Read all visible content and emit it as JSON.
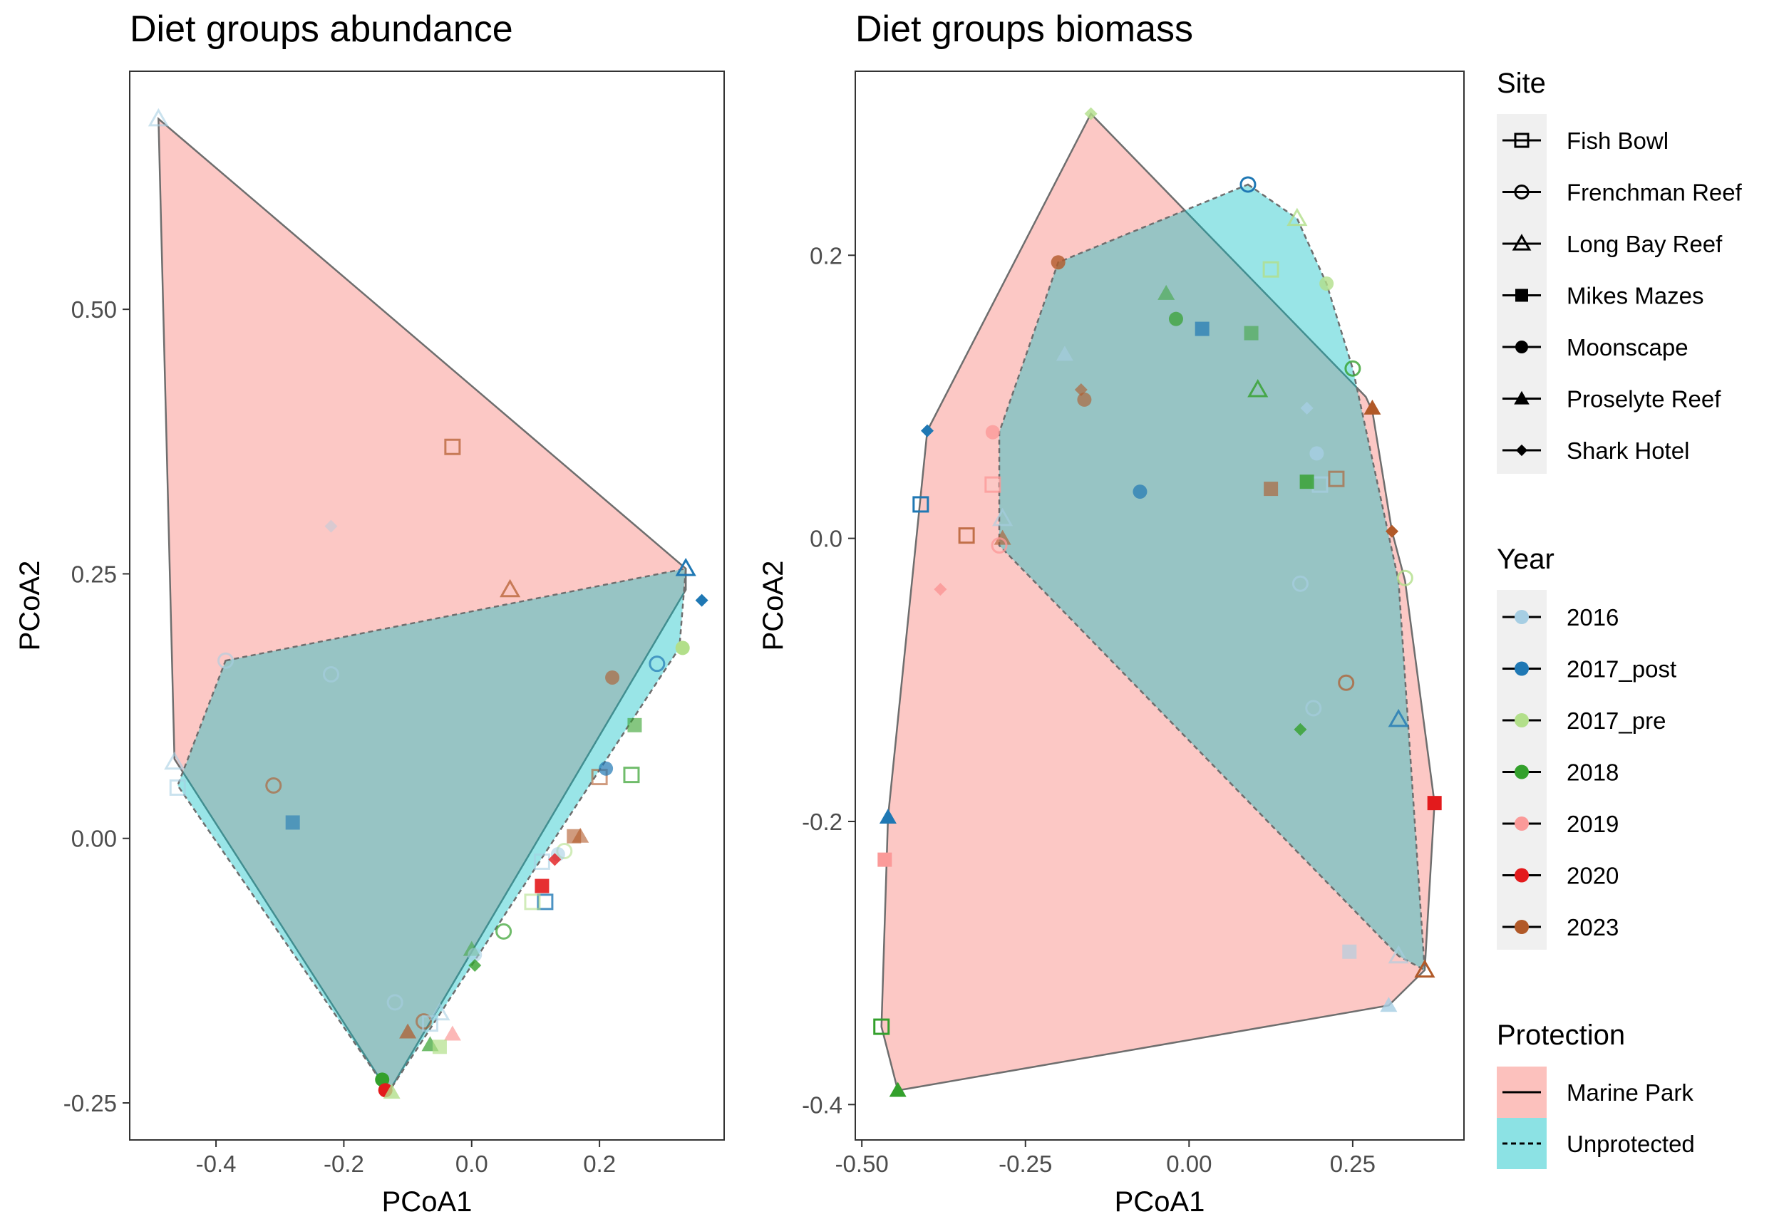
{
  "colors": {
    "marine_park_fill": "#F8766D",
    "unprotected_fill": "#00BFC4",
    "hull_stroke": "#6e6e6e",
    "years": {
      "2016": "#A6CEE3",
      "2017_post": "#1F78B4",
      "2017_pre": "#B2DF8A",
      "2018": "#33A02C",
      "2019": "#FB9A99",
      "2020": "#E31A1C",
      "2023": "#B15928"
    }
  },
  "legend": {
    "site_title": "Site",
    "sites": [
      {
        "label": "Fish Bowl",
        "shape": "square-open"
      },
      {
        "label": "Frenchman Reef",
        "shape": "circle-open"
      },
      {
        "label": "Long Bay Reef",
        "shape": "triangle-open"
      },
      {
        "label": "Mikes Mazes",
        "shape": "square-filled"
      },
      {
        "label": "Moonscape",
        "shape": "circle-filled"
      },
      {
        "label": "Proselyte Reef",
        "shape": "triangle-filled"
      },
      {
        "label": "Shark Hotel",
        "shape": "diamond-filled"
      }
    ],
    "year_title": "Year",
    "years": [
      "2016",
      "2017_post",
      "2017_pre",
      "2018",
      "2019",
      "2020",
      "2023"
    ],
    "protection_title": "Protection",
    "protection": [
      {
        "label": "Marine Park",
        "line": "solid"
      },
      {
        "label": "Unprotected",
        "line": "dashed"
      }
    ]
  },
  "chart_data": [
    {
      "type": "scatter",
      "title": "Diet groups abundance",
      "xlabel": "PCoA1",
      "ylabel": "PCoA2",
      "xlim": [
        -0.535,
        0.395
      ],
      "ylim": [
        -0.285,
        0.725
      ],
      "xticks": [
        -0.4,
        -0.2,
        0.0,
        0.2
      ],
      "xtick_labels": [
        "-0.4",
        "-0.2",
        "0.0",
        "0.2"
      ],
      "yticks": [
        -0.25,
        0.0,
        0.25,
        0.5
      ],
      "ytick_labels": [
        "-0.25",
        "0.00",
        "0.25",
        "0.50"
      ],
      "hulls": [
        {
          "group": "Marine Park",
          "points": [
            [
              -0.49,
              0.68
            ],
            [
              0.335,
              0.255
            ],
            [
              0.335,
              0.235
            ],
            [
              -0.13,
              -0.24
            ],
            [
              -0.465,
              0.075
            ]
          ]
        },
        {
          "group": "Unprotected",
          "points": [
            [
              -0.385,
              0.168
            ],
            [
              0.335,
              0.255
            ],
            [
              0.325,
              0.18
            ],
            [
              -0.13,
              -0.24
            ],
            [
              -0.46,
              0.05
            ]
          ]
        }
      ],
      "points": [
        {
          "x": -0.49,
          "y": 0.68,
          "site": "Long Bay Reef",
          "year": "2016",
          "alpha": 0.6
        },
        {
          "x": -0.03,
          "y": 0.37,
          "site": "Fish Bowl",
          "year": "2023",
          "alpha": 0.7
        },
        {
          "x": -0.22,
          "y": 0.295,
          "site": "Shark Hotel",
          "year": "2016",
          "alpha": 0.4
        },
        {
          "x": 0.06,
          "y": 0.235,
          "site": "Long Bay Reef",
          "year": "2023",
          "alpha": 0.7
        },
        {
          "x": 0.335,
          "y": 0.255,
          "site": "Long Bay Reef",
          "year": "2017_post",
          "alpha": 1.0
        },
        {
          "x": 0.36,
          "y": 0.225,
          "site": "Shark Hotel",
          "year": "2017_post",
          "alpha": 1.0
        },
        {
          "x": -0.385,
          "y": 0.168,
          "site": "Frenchman Reef",
          "year": "2016",
          "alpha": 0.6
        },
        {
          "x": -0.22,
          "y": 0.155,
          "site": "Frenchman Reef",
          "year": "2016",
          "alpha": 0.6
        },
        {
          "x": 0.29,
          "y": 0.165,
          "site": "Frenchman Reef",
          "year": "2017_post",
          "alpha": 0.7
        },
        {
          "x": 0.33,
          "y": 0.18,
          "site": "Moonscape",
          "year": "2017_pre",
          "alpha": 1.0
        },
        {
          "x": 0.22,
          "y": 0.152,
          "site": "Moonscape",
          "year": "2023",
          "alpha": 0.6
        },
        {
          "x": 0.255,
          "y": 0.107,
          "site": "Mikes Mazes",
          "year": "2018",
          "alpha": 0.6
        },
        {
          "x": -0.465,
          "y": 0.072,
          "site": "Long Bay Reef",
          "year": "2016",
          "alpha": 0.6
        },
        {
          "x": -0.46,
          "y": 0.048,
          "site": "Fish Bowl",
          "year": "2016",
          "alpha": 0.6
        },
        {
          "x": -0.31,
          "y": 0.05,
          "site": "Frenchman Reef",
          "year": "2023",
          "alpha": 0.6
        },
        {
          "x": -0.28,
          "y": 0.015,
          "site": "Mikes Mazes",
          "year": "2017_post",
          "alpha": 0.6
        },
        {
          "x": 0.2,
          "y": 0.058,
          "site": "Fish Bowl",
          "year": "2023",
          "alpha": 0.6
        },
        {
          "x": 0.25,
          "y": 0.06,
          "site": "Fish Bowl",
          "year": "2018",
          "alpha": 0.7
        },
        {
          "x": 0.21,
          "y": 0.066,
          "site": "Moonscape",
          "year": "2017_post",
          "alpha": 0.7
        },
        {
          "x": 0.17,
          "y": 0.002,
          "site": "Proselyte Reef",
          "year": "2023",
          "alpha": 0.6
        },
        {
          "x": 0.16,
          "y": 0.002,
          "site": "Mikes Mazes",
          "year": "2023",
          "alpha": 0.6
        },
        {
          "x": 0.145,
          "y": -0.012,
          "site": "Frenchman Reef",
          "year": "2017_pre",
          "alpha": 0.6
        },
        {
          "x": 0.135,
          "y": -0.015,
          "site": "Moonscape",
          "year": "2016",
          "alpha": 0.6
        },
        {
          "x": 0.11,
          "y": -0.022,
          "site": "Fish Bowl",
          "year": "2016",
          "alpha": 0.6
        },
        {
          "x": 0.13,
          "y": -0.02,
          "site": "Shark Hotel",
          "year": "2020",
          "alpha": 0.8
        },
        {
          "x": 0.11,
          "y": -0.045,
          "site": "Mikes Mazes",
          "year": "2020",
          "alpha": 0.9
        },
        {
          "x": 0.115,
          "y": -0.06,
          "site": "Fish Bowl",
          "year": "2017_post",
          "alpha": 0.8
        },
        {
          "x": 0.095,
          "y": -0.06,
          "site": "Fish Bowl",
          "year": "2017_pre",
          "alpha": 0.6
        },
        {
          "x": 0.05,
          "y": -0.088,
          "site": "Frenchman Reef",
          "year": "2018",
          "alpha": 0.7
        },
        {
          "x": 0.0,
          "y": -0.105,
          "site": "Proselyte Reef",
          "year": "2018",
          "alpha": 0.5
        },
        {
          "x": 0.005,
          "y": -0.11,
          "site": "Moonscape",
          "year": "2016",
          "alpha": 0.6
        },
        {
          "x": 0.005,
          "y": -0.12,
          "site": "Shark Hotel",
          "year": "2018",
          "alpha": 0.8
        },
        {
          "x": -0.12,
          "y": -0.155,
          "site": "Frenchman Reef",
          "year": "2016",
          "alpha": 0.6
        },
        {
          "x": -0.075,
          "y": -0.173,
          "site": "Frenchman Reef",
          "year": "2023",
          "alpha": 0.6
        },
        {
          "x": -0.065,
          "y": -0.175,
          "site": "Fish Bowl",
          "year": "2016",
          "alpha": 0.6
        },
        {
          "x": -0.05,
          "y": -0.165,
          "site": "Long Bay Reef",
          "year": "2016",
          "alpha": 0.6
        },
        {
          "x": -0.1,
          "y": -0.183,
          "site": "Proselyte Reef",
          "year": "2023",
          "alpha": 0.7
        },
        {
          "x": -0.03,
          "y": -0.185,
          "site": "Proselyte Reef",
          "year": "2019",
          "alpha": 0.7
        },
        {
          "x": -0.065,
          "y": -0.195,
          "site": "Proselyte Reef",
          "year": "2018",
          "alpha": 0.7
        },
        {
          "x": -0.05,
          "y": -0.197,
          "site": "Mikes Mazes",
          "year": "2017_pre",
          "alpha": 0.7
        },
        {
          "x": -0.14,
          "y": -0.228,
          "site": "Moonscape",
          "year": "2018",
          "alpha": 1.0
        },
        {
          "x": -0.135,
          "y": -0.238,
          "site": "Moonscape",
          "year": "2020",
          "alpha": 1.0
        },
        {
          "x": -0.125,
          "y": -0.24,
          "site": "Proselyte Reef",
          "year": "2017_pre",
          "alpha": 0.8
        }
      ]
    },
    {
      "type": "scatter",
      "title": "Diet groups biomass",
      "xlabel": "PCoA1",
      "ylabel": "PCoA2",
      "xlim": [
        -0.51,
        0.42
      ],
      "ylim": [
        -0.425,
        0.33
      ],
      "xticks": [
        -0.5,
        -0.25,
        0.0,
        0.25
      ],
      "xtick_labels": [
        "-0.50",
        "-0.25",
        "0.00",
        "0.25"
      ],
      "yticks": [
        -0.4,
        -0.2,
        0.0,
        0.2
      ],
      "ytick_labels": [
        "-0.4",
        "-0.2",
        "0.0",
        "0.2"
      ],
      "hulls": [
        {
          "group": "Marine Park",
          "points": [
            [
              -0.15,
              0.3
            ],
            [
              0.27,
              0.1
            ],
            [
              0.28,
              0.09
            ],
            [
              0.31,
              0.005
            ],
            [
              0.33,
              -0.03
            ],
            [
              0.375,
              -0.187
            ],
            [
              0.36,
              -0.305
            ],
            [
              0.305,
              -0.33
            ],
            [
              -0.445,
              -0.39
            ],
            [
              -0.47,
              -0.345
            ],
            [
              -0.46,
              -0.197
            ],
            [
              -0.4,
              0.076
            ]
          ]
        },
        {
          "group": "Unprotected",
          "points": [
            [
              0.09,
              0.25
            ],
            [
              0.165,
              0.226
            ],
            [
              0.21,
              0.18
            ],
            [
              0.25,
              0.12
            ],
            [
              0.32,
              -0.03
            ],
            [
              0.36,
              -0.305
            ],
            [
              0.32,
              -0.295
            ],
            [
              -0.29,
              -0.005
            ],
            [
              -0.29,
              0.075
            ],
            [
              -0.2,
              0.195
            ]
          ]
        }
      ],
      "points": [
        {
          "x": -0.15,
          "y": 0.3,
          "site": "Shark Hotel",
          "year": "2017_pre",
          "alpha": 0.8
        },
        {
          "x": 0.09,
          "y": 0.25,
          "site": "Frenchman Reef",
          "year": "2017_post",
          "alpha": 1.0
        },
        {
          "x": 0.165,
          "y": 0.226,
          "site": "Long Bay Reef",
          "year": "2017_pre",
          "alpha": 0.8
        },
        {
          "x": 0.125,
          "y": 0.19,
          "site": "Fish Bowl",
          "year": "2017_pre",
          "alpha": 0.8
        },
        {
          "x": -0.2,
          "y": 0.195,
          "site": "Moonscape",
          "year": "2023",
          "alpha": 0.8
        },
        {
          "x": 0.21,
          "y": 0.18,
          "site": "Moonscape",
          "year": "2017_pre",
          "alpha": 0.8
        },
        {
          "x": -0.035,
          "y": 0.173,
          "site": "Proselyte Reef",
          "year": "2018",
          "alpha": 0.5
        },
        {
          "x": -0.02,
          "y": 0.155,
          "site": "Moonscape",
          "year": "2018",
          "alpha": 0.7
        },
        {
          "x": 0.02,
          "y": 0.148,
          "site": "Mikes Mazes",
          "year": "2017_post",
          "alpha": 0.7
        },
        {
          "x": 0.095,
          "y": 0.145,
          "site": "Mikes Mazes",
          "year": "2018",
          "alpha": 0.5
        },
        {
          "x": -0.19,
          "y": 0.13,
          "site": "Proselyte Reef",
          "year": "2016",
          "alpha": 0.6
        },
        {
          "x": 0.25,
          "y": 0.12,
          "site": "Frenchman Reef",
          "year": "2018",
          "alpha": 0.8
        },
        {
          "x": -0.165,
          "y": 0.105,
          "site": "Shark Hotel",
          "year": "2023",
          "alpha": 0.6
        },
        {
          "x": -0.16,
          "y": 0.098,
          "site": "Moonscape",
          "year": "2023",
          "alpha": 0.6
        },
        {
          "x": 0.105,
          "y": 0.105,
          "site": "Long Bay Reef",
          "year": "2018",
          "alpha": 0.8
        },
        {
          "x": 0.28,
          "y": 0.092,
          "site": "Proselyte Reef",
          "year": "2023",
          "alpha": 1.0
        },
        {
          "x": 0.18,
          "y": 0.092,
          "site": "Shark Hotel",
          "year": "2016",
          "alpha": 0.8
        },
        {
          "x": -0.4,
          "y": 0.076,
          "site": "Shark Hotel",
          "year": "2017_post",
          "alpha": 1.0
        },
        {
          "x": -0.3,
          "y": 0.075,
          "site": "Moonscape",
          "year": "2019",
          "alpha": 0.8
        },
        {
          "x": 0.195,
          "y": 0.06,
          "site": "Moonscape",
          "year": "2016",
          "alpha": 0.8
        },
        {
          "x": -0.3,
          "y": 0.038,
          "site": "Fish Bowl",
          "year": "2019",
          "alpha": 0.8
        },
        {
          "x": 0.225,
          "y": 0.042,
          "site": "Fish Bowl",
          "year": "2023",
          "alpha": 0.6
        },
        {
          "x": 0.2,
          "y": 0.038,
          "site": "Fish Bowl",
          "year": "2016",
          "alpha": 0.7
        },
        {
          "x": 0.18,
          "y": 0.04,
          "site": "Mikes Mazes",
          "year": "2018",
          "alpha": 0.8
        },
        {
          "x": 0.125,
          "y": 0.035,
          "site": "Mikes Mazes",
          "year": "2023",
          "alpha": 0.6
        },
        {
          "x": -0.075,
          "y": 0.033,
          "site": "Moonscape",
          "year": "2017_post",
          "alpha": 0.7
        },
        {
          "x": -0.41,
          "y": 0.024,
          "site": "Fish Bowl",
          "year": "2017_post",
          "alpha": 1.0
        },
        {
          "x": -0.34,
          "y": 0.002,
          "site": "Fish Bowl",
          "year": "2023",
          "alpha": 0.8
        },
        {
          "x": -0.285,
          "y": 0.014,
          "site": "Long Bay Reef",
          "year": "2016",
          "alpha": 0.6
        },
        {
          "x": -0.285,
          "y": 0.0,
          "site": "Proselyte Reef",
          "year": "2023",
          "alpha": 0.6
        },
        {
          "x": -0.29,
          "y": -0.005,
          "site": "Frenchman Reef",
          "year": "2019",
          "alpha": 0.8
        },
        {
          "x": 0.31,
          "y": 0.005,
          "site": "Shark Hotel",
          "year": "2023",
          "alpha": 1.0
        },
        {
          "x": -0.38,
          "y": -0.036,
          "site": "Shark Hotel",
          "year": "2019",
          "alpha": 0.9
        },
        {
          "x": 0.17,
          "y": -0.032,
          "site": "Frenchman Reef",
          "year": "2016",
          "alpha": 0.7
        },
        {
          "x": 0.33,
          "y": -0.028,
          "site": "Frenchman Reef",
          "year": "2017_pre",
          "alpha": 0.8
        },
        {
          "x": 0.24,
          "y": -0.102,
          "site": "Frenchman Reef",
          "year": "2023",
          "alpha": 0.7
        },
        {
          "x": 0.19,
          "y": -0.12,
          "site": "Frenchman Reef",
          "year": "2016",
          "alpha": 0.6
        },
        {
          "x": 0.17,
          "y": -0.135,
          "site": "Shark Hotel",
          "year": "2018",
          "alpha": 0.8
        },
        {
          "x": 0.32,
          "y": -0.128,
          "site": "Long Bay Reef",
          "year": "2017_post",
          "alpha": 0.8
        },
        {
          "x": 0.375,
          "y": -0.187,
          "site": "Mikes Mazes",
          "year": "2020",
          "alpha": 1.0
        },
        {
          "x": -0.46,
          "y": -0.197,
          "site": "Proselyte Reef",
          "year": "2017_post",
          "alpha": 1.0
        },
        {
          "x": -0.465,
          "y": -0.227,
          "site": "Mikes Mazes",
          "year": "2019",
          "alpha": 1.0
        },
        {
          "x": 0.245,
          "y": -0.292,
          "site": "Mikes Mazes",
          "year": "2016",
          "alpha": 0.6
        },
        {
          "x": 0.32,
          "y": -0.295,
          "site": "Long Bay Reef",
          "year": "2016",
          "alpha": 0.6
        },
        {
          "x": 0.36,
          "y": -0.305,
          "site": "Long Bay Reef",
          "year": "2023",
          "alpha": 1.0
        },
        {
          "x": 0.305,
          "y": -0.33,
          "site": "Proselyte Reef",
          "year": "2016",
          "alpha": 0.8
        },
        {
          "x": -0.47,
          "y": -0.345,
          "site": "Fish Bowl",
          "year": "2018",
          "alpha": 1.0
        },
        {
          "x": -0.445,
          "y": -0.39,
          "site": "Proselyte Reef",
          "year": "2018",
          "alpha": 1.0
        }
      ]
    }
  ]
}
